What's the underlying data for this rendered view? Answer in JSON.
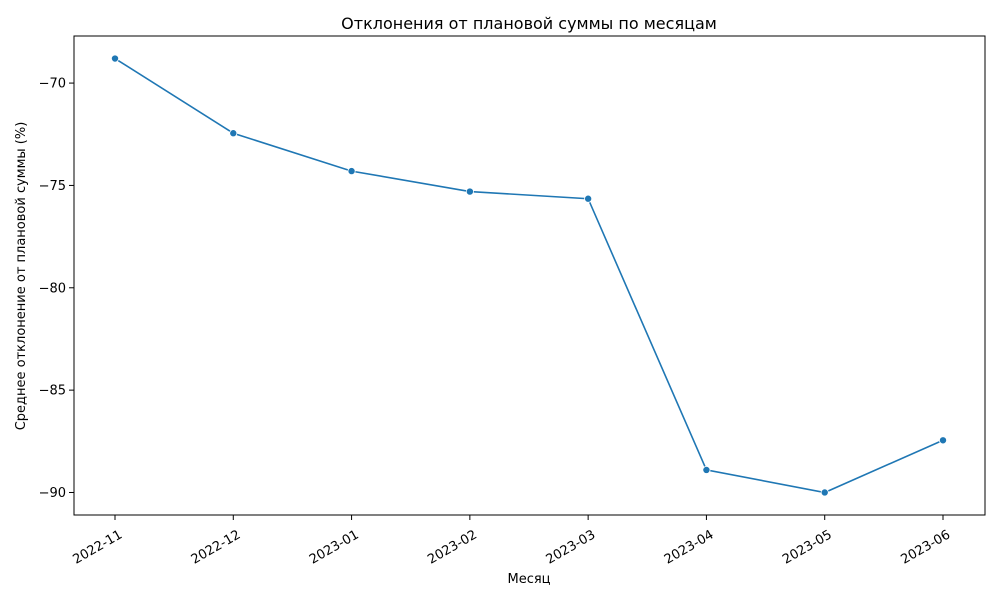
{
  "chart_data": {
    "type": "line",
    "title": "Отклонения от плановой суммы по месяцам",
    "xlabel": "Месяц",
    "ylabel": "Среднее отклонение от плановой суммы (%)",
    "categories": [
      "2022-11",
      "2022-12",
      "2023-01",
      "2023-02",
      "2023-03",
      "2023-04",
      "2023-05",
      "2023-06"
    ],
    "series": [
      {
        "values": [
          -68.8,
          -72.45,
          -74.3,
          -75.3,
          -75.65,
          -88.9,
          -90.0,
          -87.45
        ],
        "color": "#1f77b4"
      }
    ],
    "ylim": [
      -91.1,
      -67.7
    ],
    "yticks": [
      -70,
      -75,
      -80,
      -85,
      -90
    ],
    "ytick_labels": [
      "−70",
      "−75",
      "−80",
      "−85",
      "−90"
    ],
    "grid": false,
    "markers": true
  }
}
